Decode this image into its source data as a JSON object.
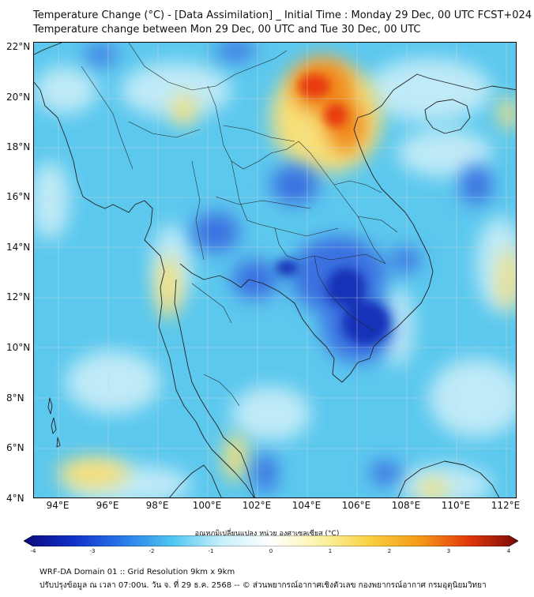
{
  "header": {
    "title_line1": "Temperature Change (°C) - [Data Assimilation] _ Initial Time : Monday 29 Dec, 00 UTC FCST+024",
    "title_line2": "Temperature change between Mon 29 Dec, 00 UTC and Tue 30 Dec, 00 UTC"
  },
  "map": {
    "lat_labels": [
      "22°N",
      "20°N",
      "18°N",
      "16°N",
      "14°N",
      "12°N",
      "10°N",
      "8°N",
      "6°N",
      "4°N"
    ],
    "lon_labels": [
      "94°E",
      "96°E",
      "98°E",
      "100°E",
      "102°E",
      "104°E",
      "106°E",
      "108°E",
      "110°E",
      "112°E"
    ],
    "colors": {
      "background": "#5cc8ee",
      "neutral": "#bfeaf7",
      "cold": "#3a6fe0",
      "very_cold": "#1233b8",
      "warm": "#f7e07a",
      "hot": "#f08a1c",
      "hotspot": "#e83a10",
      "coastline": "#222222"
    }
  },
  "colorbar": {
    "title": "อุณหภูมิเปลี่ยนแปลง หน่วย องศาเซลเซียส (°C)",
    "tick_labels": [
      "-4",
      "-3",
      "-2",
      "-1",
      "0",
      "1",
      "2",
      "3",
      "4"
    ],
    "min": -4,
    "max": 4,
    "stops": [
      "#0a0a7a",
      "#1230c8",
      "#2a78ea",
      "#4dc6f0",
      "#c8f0fb",
      "#ffffff",
      "#fbf3a8",
      "#f8d040",
      "#f59a18",
      "#e2380c",
      "#7a0808"
    ]
  },
  "footer": {
    "line1": "WRF-DA Domain 01 :: Grid Resolution 9km x 9km",
    "line2": "ปรับปรุงข้อมูล ณ เวลา 07:00น. วัน จ. ที่ 29 ธ.ค. 2568 -- © ส่วนพยากรณ์อากาศเชิงตัวเลข กองพยากรณ์อากาศ กรมอุตุนิยมวิทยา"
  }
}
